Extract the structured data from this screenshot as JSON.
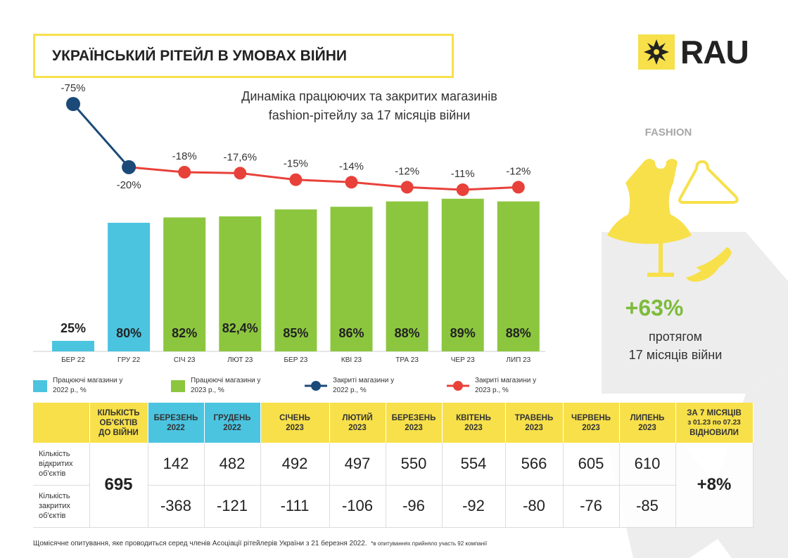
{
  "header": {
    "title": "УКРАЇНСЬКИЙ РІТЕЙЛ В УМОВАХ ВІЙНИ",
    "logo": "RAU"
  },
  "side": {
    "category": "FASHION",
    "change": "+63%",
    "caption_line1": "протягом",
    "caption_line2": "17 місяців війни"
  },
  "colors": {
    "open2022": "#4bc4e0",
    "open2023": "#8cc63f",
    "closed2022": "#1b4a78",
    "closed2023": "#e8413a",
    "yellow": "#f7e04a"
  },
  "chart_data": {
    "type": "bar+line",
    "title_line1": "Динаміка працюючих та закритих магазинів",
    "title_line2": "fashion-рітейлу за 17 місяців війни",
    "categories": [
      "БЕР 22",
      "ГРУ 22",
      "СІЧ 23",
      "ЛЮТ 23",
      "БЕР 23",
      "КВІ 23",
      "ТРА 23",
      "ЧЕР 23",
      "ЛИП 23"
    ],
    "open_percent": [
      25,
      80,
      82,
      82.4,
      85,
      86,
      88,
      89,
      88
    ],
    "open_labels": [
      "25%",
      "80%",
      "82%",
      "82,4%",
      "85%",
      "86%",
      "88%",
      "89%",
      "88%"
    ],
    "closed_percent": [
      -75,
      -20,
      -18,
      -17.6,
      -15,
      -14,
      -12,
      -11,
      -12
    ],
    "closed_labels": [
      "-75%",
      "-20%",
      "-18%",
      "-17,6%",
      "-15%",
      "-14%",
      "-12%",
      "-11%",
      "-12%"
    ],
    "year_of_point": [
      2022,
      2022,
      2023,
      2023,
      2023,
      2023,
      2023,
      2023,
      2023
    ],
    "legend": [
      {
        "label1": "Працюючі магазини у",
        "label2": "2022 р., %"
      },
      {
        "label1": "Працюючі магазини у",
        "label2": "2023 р., %"
      },
      {
        "label1": "Закриті магазини у",
        "label2": "2022 р., %"
      },
      {
        "label1": "Закриті магазини у",
        "label2": "2023 р., %"
      }
    ]
  },
  "table": {
    "pre_header_l1": "КІЛЬКІСТЬ",
    "pre_header_l2": "ОБ'ЄКТІВ",
    "pre_header_l3": "ДО ВІЙНИ",
    "months": [
      {
        "m": "БЕРЕЗЕНЬ",
        "y": "2022"
      },
      {
        "m": "ГРУДЕНЬ",
        "y": "2022"
      },
      {
        "m": "СІЧЕНЬ",
        "y": "2023"
      },
      {
        "m": "ЛЮТИЙ",
        "y": "2023"
      },
      {
        "m": "БЕРЕЗЕНЬ",
        "y": "2023"
      },
      {
        "m": "КВІТЕНЬ",
        "y": "2023"
      },
      {
        "m": "ТРАВЕНЬ",
        "y": "2023"
      },
      {
        "m": "ЧЕРВЕНЬ",
        "y": "2023"
      },
      {
        "m": "ЛИПЕНЬ",
        "y": "2023"
      }
    ],
    "total_header_l1": "ЗА 7 МІСЯЦІВ",
    "total_header_l2": "з 01.23 по 07.23",
    "total_header_l3": "ВІДНОВИЛИ",
    "row_open_l1": "Кількість",
    "row_open_l2": "відкритих",
    "row_open_l3": "об'єктів",
    "row_closed_l1": "Кількість",
    "row_closed_l2": "закритих",
    "row_closed_l3": "об'єктів",
    "pre_war": "695",
    "open": [
      "142",
      "482",
      "492",
      "497",
      "550",
      "554",
      "566",
      "605",
      "610"
    ],
    "closed": [
      "-368",
      "-121",
      "-111",
      "-106",
      "-96",
      "-92",
      "-80",
      "-76",
      "-85"
    ],
    "total": "+8%"
  },
  "footer": {
    "text": "Щомісячне опитування, яке проводиться серед членів Асоціації рітейлерів України з 21 березня 2022.",
    "note": "*в опитуваннях прийняло участь 92 компанії"
  }
}
